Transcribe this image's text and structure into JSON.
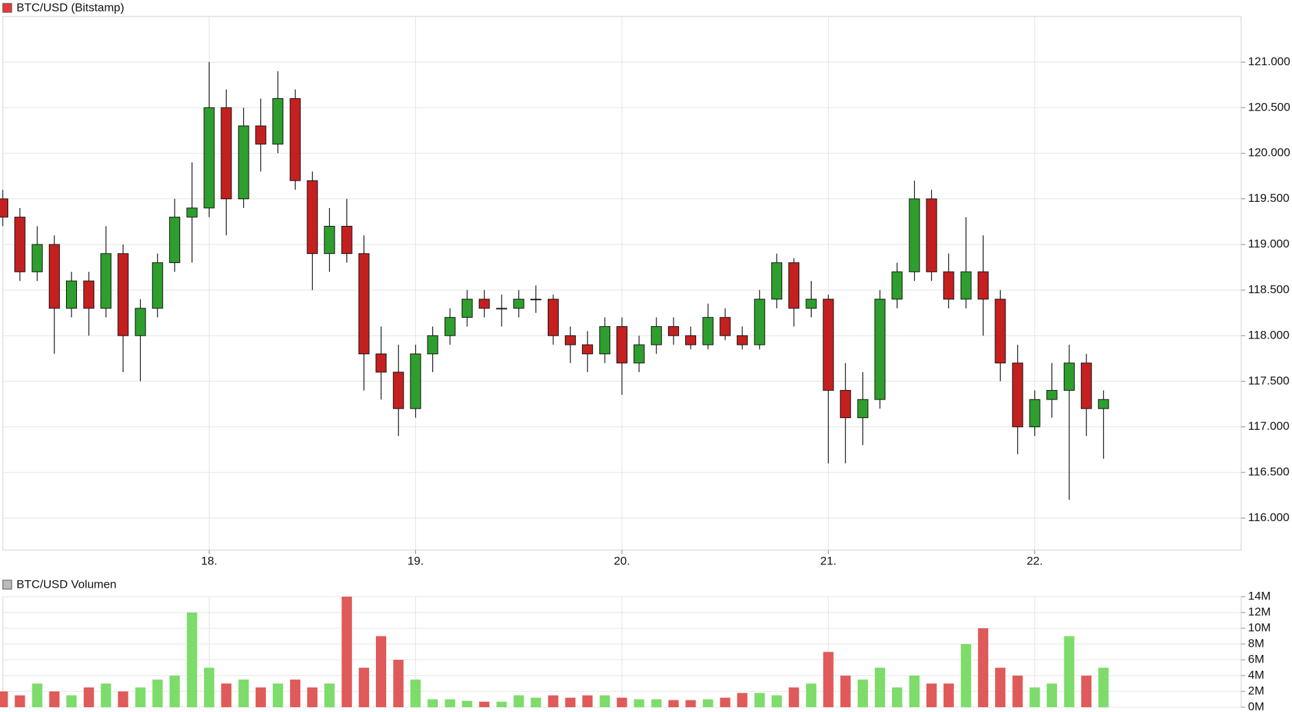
{
  "chart_data": [
    {
      "type": "candlestick",
      "title": "BTC/USD (Bitstamp)",
      "legend_color": "#e8383d",
      "up_color": "#2e9e2e",
      "down_color": "#c42020",
      "wick_color": "#111111",
      "grid": true,
      "x": [
        17,
        17.083,
        17.167,
        17.25,
        17.333,
        17.417,
        17.5,
        17.583,
        17.667,
        17.75,
        17.833,
        17.917,
        18,
        18.083,
        18.167,
        18.25,
        18.333,
        18.417,
        18.5,
        18.583,
        18.667,
        18.75,
        18.833,
        18.917,
        19,
        19.083,
        19.167,
        19.25,
        19.333,
        19.417,
        19.5,
        19.583,
        19.667,
        19.75,
        19.833,
        19.917,
        20,
        20.083,
        20.167,
        20.25,
        20.333,
        20.417,
        20.5,
        20.583,
        20.667,
        20.75,
        20.833,
        20.917,
        21,
        21.083,
        21.167,
        21.25,
        21.333,
        21.417,
        21.5,
        21.583,
        21.667,
        21.75,
        21.833,
        21.917,
        22,
        22.083,
        22.167,
        22.25,
        22.333
      ],
      "open": [
        119500,
        119300,
        118700,
        119000,
        118300,
        118600,
        118300,
        118900,
        118000,
        118300,
        118800,
        119300,
        119400,
        120500,
        119500,
        120300,
        120100,
        120600,
        119700,
        118900,
        119200,
        118900,
        117800,
        117600,
        117200,
        117800,
        118000,
        118200,
        118400,
        118300,
        118300,
        118400,
        118400,
        118000,
        117900,
        117800,
        118100,
        117700,
        117900,
        118100,
        118000,
        117900,
        118200,
        118000,
        117900,
        118400,
        118800,
        118300,
        118400,
        117400,
        117100,
        117300,
        118400,
        118700,
        119500,
        118700,
        118400,
        118700,
        118400,
        117700,
        117000,
        117300,
        117400,
        117700,
        117200
      ],
      "high": [
        119600,
        119400,
        119200,
        119100,
        118700,
        118700,
        119200,
        119000,
        118400,
        118900,
        119500,
        119900,
        121000,
        120700,
        120500,
        120600,
        120900,
        120700,
        119800,
        119400,
        119500,
        119100,
        118100,
        117900,
        117900,
        118100,
        118300,
        118500,
        118500,
        118450,
        118500,
        118550,
        118450,
        118100,
        118050,
        118200,
        118200,
        118000,
        118200,
        118200,
        118100,
        118350,
        118300,
        118100,
        118500,
        118900,
        118850,
        118600,
        118450,
        117700,
        117600,
        118500,
        118800,
        119700,
        119600,
        118900,
        119300,
        119100,
        118500,
        117900,
        117400,
        117700,
        117900,
        117800,
        117400
      ],
      "low": [
        119200,
        118600,
        118600,
        117800,
        118200,
        118000,
        118200,
        117600,
        117500,
        118200,
        118700,
        118800,
        119300,
        119100,
        119400,
        119800,
        120000,
        119600,
        118500,
        118700,
        118800,
        117400,
        117300,
        116900,
        117100,
        117600,
        117900,
        118100,
        118200,
        118100,
        118200,
        118250,
        117900,
        117700,
        117600,
        117700,
        117350,
        117600,
        117800,
        117900,
        117850,
        117850,
        117950,
        117850,
        117850,
        118300,
        118100,
        118200,
        116600,
        116600,
        116800,
        117200,
        118300,
        118600,
        118600,
        118300,
        118300,
        118000,
        117500,
        116700,
        116900,
        117100,
        116200,
        116900,
        116650
      ],
      "close": [
        119300,
        118700,
        119000,
        118300,
        118600,
        118300,
        118900,
        118000,
        118300,
        118800,
        119300,
        119400,
        120500,
        119500,
        120300,
        120100,
        120600,
        119700,
        118900,
        119200,
        118900,
        117800,
        117600,
        117200,
        117800,
        118000,
        118200,
        118400,
        118300,
        118300,
        118400,
        118400,
        118000,
        117900,
        117800,
        118100,
        117700,
        117900,
        118100,
        118000,
        117900,
        118200,
        118000,
        117900,
        118400,
        118800,
        118300,
        118400,
        117400,
        117100,
        117300,
        118400,
        118700,
        119500,
        118700,
        118400,
        118700,
        118400,
        117700,
        117000,
        117300,
        117400,
        117700,
        117200,
        117300
      ],
      "xlim": [
        17,
        23
      ],
      "xticks": [
        {
          "value": 18,
          "label": "18."
        },
        {
          "value": 19,
          "label": "19."
        },
        {
          "value": 20,
          "label": "20."
        },
        {
          "value": 21,
          "label": "21."
        },
        {
          "value": 22,
          "label": "22."
        }
      ],
      "ylim": [
        115650,
        121500
      ],
      "yticks": [
        {
          "value": 116000,
          "label": "116.000"
        },
        {
          "value": 116500,
          "label": "116.500"
        },
        {
          "value": 117000,
          "label": "117.000"
        },
        {
          "value": 117500,
          "label": "117.500"
        },
        {
          "value": 118000,
          "label": "118.000"
        },
        {
          "value": 118500,
          "label": "118.500"
        },
        {
          "value": 119000,
          "label": "119.000"
        },
        {
          "value": 119500,
          "label": "119.500"
        },
        {
          "value": 120000,
          "label": "120.000"
        },
        {
          "value": 120500,
          "label": "120.500"
        },
        {
          "value": 121000,
          "label": "121.000"
        }
      ]
    },
    {
      "type": "bar",
      "title": "BTC/USD Volumen",
      "legend_color": "#bbbbbb",
      "up_color": "#7ddc6a",
      "down_color": "#e05a5a",
      "grid": true,
      "values": [
        2000000,
        1500000,
        3000000,
        2000000,
        1500000,
        2500000,
        3000000,
        2000000,
        2500000,
        3500000,
        4000000,
        12000000,
        5000000,
        3000000,
        3500000,
        2500000,
        3000000,
        3500000,
        2500000,
        3000000,
        14000000,
        5000000,
        9000000,
        6000000,
        3500000,
        1000000,
        1000000,
        800000,
        700000,
        700000,
        1500000,
        1200000,
        1500000,
        1200000,
        1500000,
        1500000,
        1200000,
        1000000,
        1000000,
        900000,
        900000,
        1000000,
        1200000,
        1800000,
        1800000,
        1500000,
        2500000,
        3000000,
        7000000,
        4000000,
        3500000,
        5000000,
        2500000,
        4000000,
        3000000,
        3000000,
        8000000,
        10000000,
        5000000,
        4000000,
        2500000,
        3000000,
        9000000,
        4000000,
        5000000
      ],
      "ylim": [
        0,
        14000000
      ],
      "yticks": [
        {
          "value": 0,
          "label": "0M"
        },
        {
          "value": 2000000,
          "label": "2M"
        },
        {
          "value": 4000000,
          "label": "4M"
        },
        {
          "value": 6000000,
          "label": "6M"
        },
        {
          "value": 8000000,
          "label": "8M"
        },
        {
          "value": 10000000,
          "label": "10M"
        },
        {
          "value": 12000000,
          "label": "12M"
        },
        {
          "value": 14000000,
          "label": "14M"
        }
      ]
    }
  ]
}
